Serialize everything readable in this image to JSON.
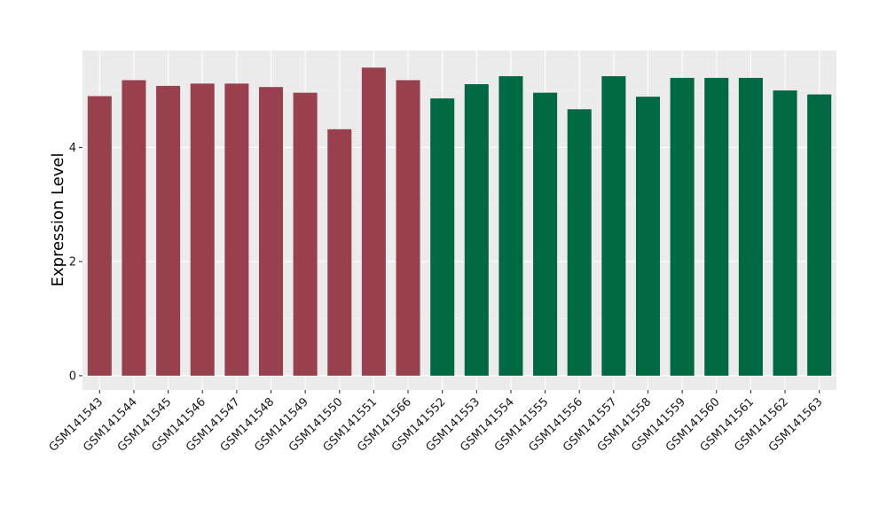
{
  "chart_data": {
    "type": "bar",
    "title": "",
    "xlabel": "",
    "ylabel": "Expression Level",
    "ylim": [
      -0.25,
      5.7
    ],
    "yticks": [
      0,
      2,
      4
    ],
    "grid": true,
    "legend": "none",
    "categories": [
      "GSM141543",
      "GSM141544",
      "GSM141545",
      "GSM141546",
      "GSM141547",
      "GSM141548",
      "GSM141549",
      "GSM141550",
      "GSM141551",
      "GSM141566",
      "GSM141552",
      "GSM141553",
      "GSM141554",
      "GSM141555",
      "GSM141556",
      "GSM141557",
      "GSM141558",
      "GSM141559",
      "GSM141560",
      "GSM141561",
      "GSM141562",
      "GSM141563"
    ],
    "values": [
      4.9,
      5.18,
      5.08,
      5.12,
      5.12,
      5.06,
      4.96,
      4.32,
      5.4,
      5.18,
      4.86,
      5.11,
      5.25,
      4.96,
      4.67,
      5.25,
      4.89,
      5.22,
      5.22,
      5.22,
      5.0,
      4.93
    ],
    "groups": [
      1,
      1,
      1,
      1,
      1,
      1,
      1,
      1,
      1,
      1,
      2,
      2,
      2,
      2,
      2,
      2,
      2,
      2,
      2,
      2,
      2,
      2
    ],
    "colors": {
      "group1": "#99404F",
      "group2": "#016844",
      "panel": "#EBEBEB",
      "grid_major": "#FFFFFF",
      "grid_minor": "#F4F4F4"
    }
  }
}
